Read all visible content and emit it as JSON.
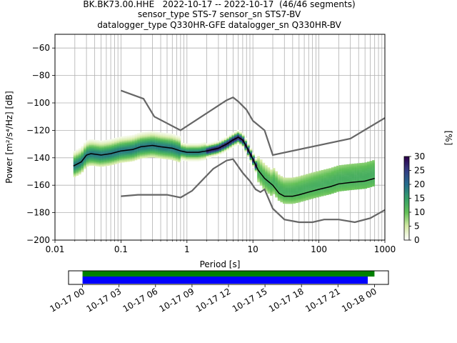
{
  "figure": {
    "title_lines": [
      "BK.BK73.00.HHE   2022-10-17 -- 2022-10-17  (46/46 segments)",
      "sensor_type STS-7 sensor_sn STS7-BV",
      "datalogger_type Q330HR-GFE datalogger_sn Q330HR-BV"
    ]
  },
  "chart_data": [
    {
      "type": "heatmap",
      "subtype": "probabilistic power spectral density",
      "xlabel": "Period [s]",
      "ylabel": "Power [m²/s⁴/Hz] [dB]",
      "xscale": "log",
      "xlim": [
        0.01,
        1000
      ],
      "ylim": [
        -200,
        -50
      ],
      "x_ticks": [
        0.01,
        0.1,
        1,
        10,
        100,
        1000
      ],
      "x_tick_labels": [
        "0.01",
        "0.1",
        "1",
        "10",
        "100",
        "1000"
      ],
      "y_ticks": [
        -200,
        -180,
        -160,
        -140,
        -120,
        -100,
        -80,
        -60
      ],
      "y_tick_labels": [
        "−200",
        "−180",
        "−160",
        "−140",
        "−120",
        "−100",
        "−80",
        "−60"
      ],
      "grid": true,
      "colorbar": {
        "label": "[%]",
        "range": [
          0,
          30
        ],
        "ticks": [
          0,
          5,
          10,
          15,
          20,
          25,
          30
        ],
        "tick_labels": [
          "0",
          "5",
          "10",
          "15",
          "20",
          "25",
          "30"
        ]
      },
      "series": [
        {
          "name": "",
          "color": "#000000",
          "x": [
            0.019,
            0.025,
            0.03,
            0.035,
            0.05,
            0.07,
            0.1,
            0.15,
            0.2,
            0.3,
            0.4,
            0.6,
            0.8,
            1,
            1.5,
            2,
            3,
            4,
            5,
            6,
            7,
            8,
            10,
            12,
            15,
            20,
            25,
            30,
            40,
            50,
            70,
            100,
            150,
            200,
            300,
            500,
            700
          ],
          "y": [
            -146,
            -143,
            -138,
            -137,
            -138,
            -137,
            -135,
            -134,
            -132,
            -131,
            -132,
            -133,
            -135,
            -136,
            -136,
            -135,
            -133,
            -130,
            -127,
            -125,
            -127,
            -132,
            -141,
            -149,
            -155,
            -160,
            -166,
            -168,
            -168,
            -167,
            -165,
            -163,
            -161,
            -159,
            -158,
            -157,
            -155
          ]
        },
        {
          "name": "",
          "color": "#666666",
          "x": [
            0.1,
            0.22,
            0.32,
            0.8,
            4.0,
            5.0,
            6.0,
            8.0,
            10.0,
            15.0,
            20.0,
            300.0,
            1000.0
          ],
          "y": [
            -91,
            -97,
            -110,
            -120,
            -98,
            -96,
            -99,
            -105,
            -113,
            -120,
            -138,
            -126,
            -111
          ]
        },
        {
          "name": "",
          "color": "#666666",
          "x": [
            0.1,
            0.18,
            0.5,
            0.8,
            1.2,
            2.5,
            4.0,
            5.0,
            7.0,
            9.0,
            11.0,
            13.0,
            15.0,
            20.0,
            30.0,
            50.0,
            80.0,
            120.0,
            200.0,
            350.0,
            600.0,
            1000.0
          ],
          "y": [
            -168,
            -167,
            -167,
            -169,
            -164,
            -148,
            -142,
            -141,
            -151,
            -157,
            -163,
            -165,
            -163,
            -177,
            -185,
            -187,
            -187,
            -185,
            -185,
            -187,
            -184,
            -178
          ]
        }
      ]
    },
    {
      "type": "bar",
      "subtype": "data coverage",
      "x_tick_labels": [
        "10-17 00",
        "10-17 03",
        "10-17 06",
        "10-17 09",
        "10-17 12",
        "10-17 15",
        "10-17 18",
        "10-17 21",
        "10-18 00"
      ],
      "series": [
        {
          "name": "",
          "color": "#008000",
          "start_hours": 0.0,
          "end_hours": 24.0
        },
        {
          "name": "",
          "color": "#0000ff",
          "start_hours": 0.0,
          "end_hours": 23.45
        }
      ],
      "x_range_hours": [
        -1.15,
        25.15
      ]
    }
  ]
}
